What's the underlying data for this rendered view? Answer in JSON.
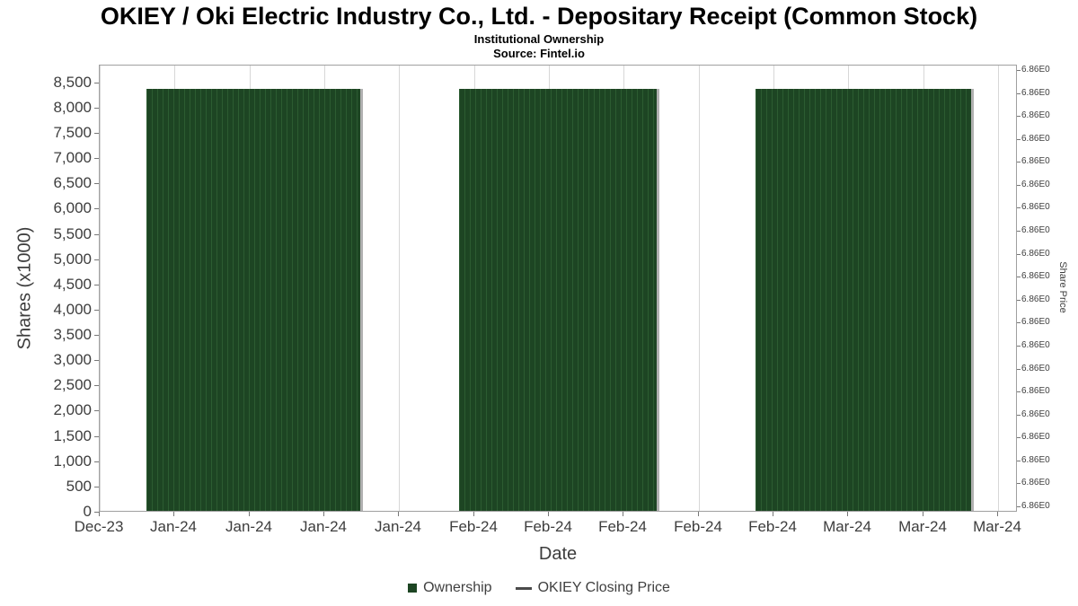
{
  "chart_data": {
    "type": "bar",
    "title": "OKIEY / Oki Electric Industry Co., Ltd. - Depositary Receipt (Common Stock)",
    "subtitle": "Institutional Ownership",
    "source": "Source: Fintel.io",
    "xlabel": "Date",
    "ylabel_left": "Shares (x1000)",
    "ylabel_right": "Share Price",
    "x_tick_labels": [
      "Dec-23",
      "Jan-24",
      "Jan-24",
      "Jan-24",
      "Jan-24",
      "Feb-24",
      "Feb-24",
      "Feb-24",
      "Feb-24",
      "Feb-24",
      "Mar-24",
      "Mar-24",
      "Mar-24"
    ],
    "y_left": {
      "min": 0,
      "max": 8500,
      "step": 500,
      "axis_max": 8850
    },
    "y_right": {
      "tick_label": "6.86E0",
      "tick_count": 20
    },
    "series": [
      {
        "name": "Ownership",
        "type": "bar",
        "value_x1000": 8380,
        "blocks": [
          {
            "period": "Jan-24",
            "start_tick": 0.62,
            "end_tick": 3.48
          },
          {
            "period": "Feb-24",
            "start_tick": 4.8,
            "end_tick": 7.44
          },
          {
            "period": "Mar-24",
            "start_tick": 8.76,
            "end_tick": 11.64
          }
        ]
      },
      {
        "name": "OKIEY Closing Price",
        "type": "line",
        "value": 6.86
      }
    ],
    "legend": [
      {
        "label": "Ownership",
        "swatch": "square"
      },
      {
        "label": "OKIEY Closing Price",
        "swatch": "line"
      }
    ],
    "colors": {
      "bar": "#1d4523",
      "bar_stripe": "#2c5c31",
      "bar_shadow": "#b0b0b0",
      "grid": "#d7d7d7",
      "plot_border": "#a0a0a0",
      "axis_text": "#3d3d3d",
      "legend_line": "#4a4a4a"
    }
  }
}
